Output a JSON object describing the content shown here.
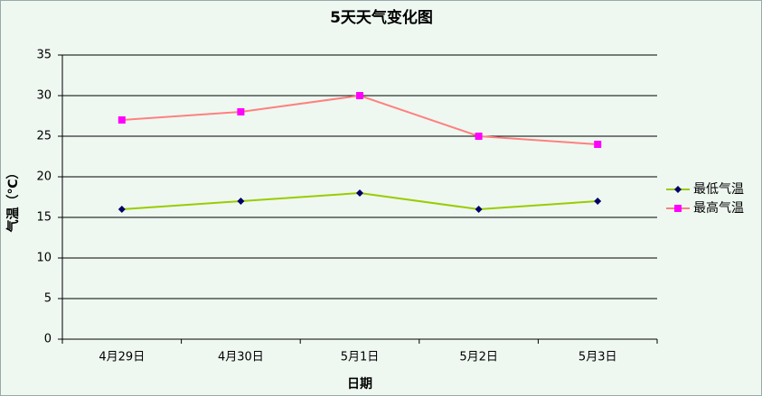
{
  "chart_data": {
    "type": "line",
    "title": "5天天气变化图",
    "x_label": "日期",
    "y_label": "气温（℃）",
    "categories": [
      "4月29日",
      "4月30日",
      "5月1日",
      "5月2日",
      "5月3日"
    ],
    "series": [
      {
        "name": "最低气温",
        "color": "#99cc00",
        "marker_color": "#000066",
        "marker": "diamond",
        "values": [
          16,
          17,
          18,
          16,
          17
        ]
      },
      {
        "name": "最高气温",
        "color": "#ff8080",
        "marker_color": "#ff00ff",
        "marker": "square",
        "values": [
          27,
          28,
          30,
          25,
          24
        ]
      }
    ],
    "ylim": [
      0,
      35
    ],
    "yticks": [
      0,
      5,
      10,
      15,
      20,
      25,
      30,
      35
    ],
    "grid": true,
    "legend": "right"
  }
}
